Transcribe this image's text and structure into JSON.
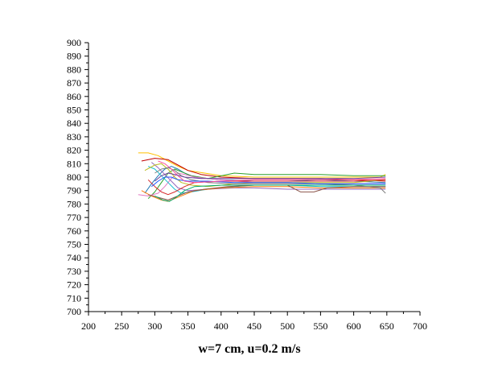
{
  "chart_data": {
    "type": "line",
    "xlabel": "w=7 cm, u=0.2 m/s",
    "ylabel": "",
    "xlim": [
      200,
      700
    ],
    "ylim": [
      700,
      900
    ],
    "xticks": [
      200,
      250,
      300,
      350,
      400,
      450,
      500,
      550,
      600,
      650,
      700
    ],
    "yticks": [
      700,
      710,
      720,
      730,
      740,
      750,
      760,
      770,
      780,
      790,
      800,
      810,
      820,
      830,
      840,
      850,
      860,
      870,
      880,
      890,
      900
    ],
    "grid": false,
    "legend": "none",
    "series": [
      {
        "color": "#ffc000",
        "points": [
          [
            275,
            818
          ],
          [
            290,
            818
          ],
          [
            305,
            816
          ],
          [
            320,
            812
          ],
          [
            335,
            808
          ],
          [
            350,
            805
          ],
          [
            375,
            803
          ],
          [
            400,
            801
          ],
          [
            450,
            800
          ],
          [
            500,
            800
          ],
          [
            550,
            800
          ],
          [
            600,
            800
          ],
          [
            640,
            800
          ],
          [
            648,
            802
          ]
        ]
      },
      {
        "color": "#c00000",
        "points": [
          [
            280,
            812
          ],
          [
            300,
            814
          ],
          [
            320,
            813
          ],
          [
            335,
            809
          ],
          [
            350,
            805
          ],
          [
            370,
            802
          ],
          [
            400,
            800
          ],
          [
            450,
            799
          ],
          [
            500,
            799
          ],
          [
            550,
            799
          ],
          [
            600,
            798
          ],
          [
            648,
            797
          ]
        ]
      },
      {
        "color": "#1f77b4",
        "points": [
          [
            285,
            788
          ],
          [
            295,
            795
          ],
          [
            305,
            801
          ],
          [
            315,
            806
          ],
          [
            325,
            808
          ],
          [
            335,
            806
          ],
          [
            345,
            803
          ],
          [
            360,
            800
          ],
          [
            400,
            798
          ],
          [
            450,
            797
          ],
          [
            500,
            797
          ],
          [
            550,
            798
          ],
          [
            600,
            797
          ],
          [
            648,
            796
          ]
        ]
      },
      {
        "color": "#2ca02c",
        "points": [
          [
            290,
            784
          ],
          [
            300,
            789
          ],
          [
            310,
            796
          ],
          [
            320,
            803
          ],
          [
            330,
            806
          ],
          [
            340,
            804
          ],
          [
            355,
            801
          ],
          [
            380,
            799
          ],
          [
            420,
            803
          ],
          [
            450,
            802
          ],
          [
            500,
            802
          ],
          [
            550,
            802
          ],
          [
            600,
            801
          ],
          [
            648,
            801
          ]
        ]
      },
      {
        "color": "#e377c2",
        "points": [
          [
            275,
            787
          ],
          [
            290,
            786
          ],
          [
            305,
            788
          ],
          [
            315,
            793
          ],
          [
            325,
            799
          ],
          [
            335,
            803
          ],
          [
            345,
            802
          ],
          [
            360,
            800
          ],
          [
            400,
            798
          ],
          [
            450,
            796
          ],
          [
            500,
            796
          ],
          [
            550,
            795
          ],
          [
            600,
            795
          ],
          [
            648,
            795
          ]
        ]
      },
      {
        "color": "#17becf",
        "points": [
          [
            290,
            808
          ],
          [
            300,
            806
          ],
          [
            310,
            801
          ],
          [
            320,
            796
          ],
          [
            330,
            791
          ],
          [
            340,
            788
          ],
          [
            355,
            789
          ],
          [
            380,
            791
          ],
          [
            420,
            793
          ],
          [
            450,
            794
          ],
          [
            500,
            794
          ],
          [
            550,
            793
          ],
          [
            600,
            793
          ],
          [
            648,
            793
          ]
        ]
      },
      {
        "color": "#9467bd",
        "points": [
          [
            295,
            811
          ],
          [
            305,
            807
          ],
          [
            315,
            802
          ],
          [
            325,
            797
          ],
          [
            335,
            792
          ],
          [
            350,
            790
          ],
          [
            380,
            791
          ],
          [
            420,
            792
          ],
          [
            450,
            792
          ],
          [
            500,
            791
          ],
          [
            550,
            791
          ],
          [
            600,
            791
          ],
          [
            648,
            791
          ]
        ]
      },
      {
        "color": "#ff7f0e",
        "points": [
          [
            280,
            790
          ],
          [
            295,
            786
          ],
          [
            310,
            783
          ],
          [
            320,
            782
          ],
          [
            330,
            784
          ],
          [
            345,
            787
          ],
          [
            360,
            790
          ],
          [
            400,
            792
          ],
          [
            450,
            793
          ],
          [
            500,
            793
          ],
          [
            550,
            792
          ],
          [
            600,
            792
          ],
          [
            648,
            792
          ]
        ]
      },
      {
        "color": "#8c564b",
        "points": [
          [
            290,
            787
          ],
          [
            305,
            785
          ],
          [
            320,
            783
          ],
          [
            335,
            786
          ],
          [
            350,
            789
          ],
          [
            375,
            791
          ],
          [
            410,
            793
          ],
          [
            450,
            794
          ],
          [
            500,
            794
          ],
          [
            520,
            789
          ],
          [
            540,
            789
          ],
          [
            560,
            792
          ],
          [
            600,
            793
          ],
          [
            648,
            793
          ]
        ]
      },
      {
        "color": "#bcbd22",
        "points": [
          [
            285,
            805
          ],
          [
            300,
            809
          ],
          [
            310,
            810
          ],
          [
            320,
            806
          ],
          [
            330,
            800
          ],
          [
            340,
            796
          ],
          [
            355,
            794
          ],
          [
            380,
            793
          ],
          [
            420,
            795
          ],
          [
            450,
            796
          ],
          [
            500,
            796
          ],
          [
            550,
            796
          ],
          [
            600,
            796
          ],
          [
            648,
            798
          ]
        ]
      },
      {
        "color": "#d62728",
        "points": [
          [
            290,
            798
          ],
          [
            300,
            793
          ],
          [
            310,
            789
          ],
          [
            320,
            787
          ],
          [
            330,
            789
          ],
          [
            345,
            793
          ],
          [
            360,
            796
          ],
          [
            400,
            797
          ],
          [
            450,
            797
          ],
          [
            500,
            797
          ],
          [
            550,
            797
          ],
          [
            600,
            797
          ],
          [
            648,
            798
          ]
        ]
      },
      {
        "color": "#7f7f7f",
        "points": [
          [
            300,
            803
          ],
          [
            310,
            806
          ],
          [
            320,
            807
          ],
          [
            330,
            805
          ],
          [
            340,
            801
          ],
          [
            355,
            798
          ],
          [
            380,
            796
          ],
          [
            420,
            795
          ],
          [
            450,
            795
          ],
          [
            500,
            795
          ],
          [
            550,
            795
          ],
          [
            600,
            794
          ],
          [
            640,
            792
          ],
          [
            648,
            788
          ]
        ]
      },
      {
        "color": "#1a55ff",
        "points": [
          [
            295,
            793
          ],
          [
            305,
            797
          ],
          [
            315,
            800
          ],
          [
            325,
            800
          ],
          [
            335,
            798
          ],
          [
            350,
            797
          ],
          [
            380,
            797
          ],
          [
            420,
            796
          ],
          [
            450,
            796
          ],
          [
            500,
            796
          ],
          [
            550,
            795
          ],
          [
            600,
            795
          ],
          [
            648,
            795
          ]
        ]
      },
      {
        "color": "#00a86b",
        "points": [
          [
            300,
            786
          ],
          [
            312,
            783
          ],
          [
            322,
            782
          ],
          [
            332,
            785
          ],
          [
            345,
            790
          ],
          [
            360,
            793
          ],
          [
            400,
            794
          ],
          [
            450,
            794
          ],
          [
            500,
            794
          ],
          [
            550,
            794
          ],
          [
            600,
            794
          ],
          [
            648,
            794
          ]
        ]
      },
      {
        "color": "#ff4f9a",
        "points": [
          [
            305,
            812
          ],
          [
            315,
            810
          ],
          [
            325,
            806
          ],
          [
            335,
            801
          ],
          [
            345,
            797
          ],
          [
            360,
            796
          ],
          [
            400,
            797
          ],
          [
            450,
            798
          ],
          [
            500,
            798
          ],
          [
            550,
            798
          ],
          [
            600,
            798
          ],
          [
            648,
            799
          ]
        ]
      },
      {
        "color": "#6a3d9a",
        "points": [
          [
            300,
            797
          ],
          [
            310,
            801
          ],
          [
            320,
            803
          ],
          [
            330,
            802
          ],
          [
            345,
            800
          ],
          [
            370,
            799
          ],
          [
            400,
            799
          ],
          [
            450,
            799
          ],
          [
            500,
            799
          ],
          [
            550,
            799
          ],
          [
            600,
            799
          ],
          [
            648,
            800
          ]
        ]
      }
    ]
  }
}
